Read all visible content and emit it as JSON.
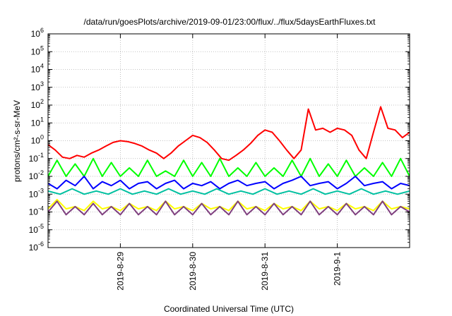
{
  "chart_data": {
    "type": "line",
    "title": "/data/run/goesPlots/archive/2019-09-01/23:00/flux/../flux/5daysEarthFluxes.txt",
    "xlabel": "Coordinated Universal Time (UTC)",
    "ylabel": "protons/cm²-s-sr-MeV",
    "yscale": "log",
    "ylim": [
      1e-06,
      1000000.0
    ],
    "xlim": [
      "2019-08-28 00:00",
      "2019-09-02 00:00"
    ],
    "grid": true,
    "legend": "none",
    "x_tick_labels": [
      "2019-8-29",
      "2019-8-30",
      "2019-8-31",
      "2019-9-1"
    ],
    "x_tick_dates": [
      "2019-08-29",
      "2019-08-30",
      "2019-08-31",
      "2019-09-01"
    ],
    "y_tick_exponents": [
      -6,
      -5,
      -4,
      -3,
      -2,
      -1,
      0,
      1,
      2,
      3,
      4,
      5,
      6
    ],
    "series": [
      {
        "color": "#ff0000",
        "width": 2,
        "x": [
          "2019-08-28 00:00",
          "2019-08-28 02:24",
          "2019-08-28 04:48",
          "2019-08-28 07:12",
          "2019-08-28 09:36",
          "2019-08-28 12:00",
          "2019-08-28 14:24",
          "2019-08-28 16:48",
          "2019-08-28 19:12",
          "2019-08-28 21:36",
          "2019-08-29 00:00",
          "2019-08-29 02:24",
          "2019-08-29 04:48",
          "2019-08-29 07:12",
          "2019-08-29 09:36",
          "2019-08-29 12:00",
          "2019-08-29 14:24",
          "2019-08-29 16:48",
          "2019-08-29 19:12",
          "2019-08-29 21:36",
          "2019-08-30 00:00",
          "2019-08-30 02:24",
          "2019-08-30 04:48",
          "2019-08-30 07:12",
          "2019-08-30 09:36",
          "2019-08-30 12:00",
          "2019-08-30 14:24",
          "2019-08-30 16:48",
          "2019-08-30 19:12",
          "2019-08-30 21:36",
          "2019-08-31 00:00",
          "2019-08-31 02:24",
          "2019-08-31 04:48",
          "2019-08-31 07:12",
          "2019-08-31 09:36",
          "2019-08-31 12:00",
          "2019-08-31 14:24",
          "2019-08-31 16:48",
          "2019-08-31 19:12",
          "2019-08-31 21:36",
          "2019-09-01 00:00",
          "2019-09-01 02:24",
          "2019-09-01 04:48",
          "2019-09-01 07:12",
          "2019-09-01 09:36",
          "2019-09-01 12:00",
          "2019-09-01 14:24",
          "2019-09-01 16:48",
          "2019-09-01 19:12",
          "2019-09-01 21:36",
          "2019-09-02 00:00"
        ],
        "y": [
          0.6,
          0.3,
          0.12,
          0.1,
          0.15,
          0.12,
          0.2,
          0.3,
          0.5,
          0.8,
          1.0,
          0.9,
          0.7,
          0.5,
          0.3,
          0.2,
          0.1,
          0.2,
          0.5,
          1.0,
          2.0,
          1.5,
          0.8,
          0.3,
          0.1,
          0.08,
          0.15,
          0.3,
          0.7,
          2.0,
          4.0,
          3.0,
          1.0,
          0.3,
          0.1,
          0.3,
          60,
          4,
          5,
          3,
          5,
          4,
          2,
          0.3,
          0.1,
          3,
          80,
          5,
          4,
          1.5,
          3
        ]
      },
      {
        "color": "#00ff00",
        "width": 2,
        "x": [
          "2019-08-28 00:00",
          "2019-08-28 03:00",
          "2019-08-28 06:00",
          "2019-08-28 09:00",
          "2019-08-28 12:00",
          "2019-08-28 15:00",
          "2019-08-28 18:00",
          "2019-08-28 21:00",
          "2019-08-29 00:00",
          "2019-08-29 03:00",
          "2019-08-29 06:00",
          "2019-08-29 09:00",
          "2019-08-29 12:00",
          "2019-08-29 15:00",
          "2019-08-29 18:00",
          "2019-08-29 21:00",
          "2019-08-30 00:00",
          "2019-08-30 03:00",
          "2019-08-30 06:00",
          "2019-08-30 09:00",
          "2019-08-30 12:00",
          "2019-08-30 15:00",
          "2019-08-30 18:00",
          "2019-08-30 21:00",
          "2019-08-31 00:00",
          "2019-08-31 03:00",
          "2019-08-31 06:00",
          "2019-08-31 09:00",
          "2019-08-31 12:00",
          "2019-08-31 15:00",
          "2019-08-31 18:00",
          "2019-08-31 21:00",
          "2019-09-01 00:00",
          "2019-09-01 03:00",
          "2019-09-01 06:00",
          "2019-09-01 09:00",
          "2019-09-01 12:00",
          "2019-09-01 15:00",
          "2019-09-01 18:00",
          "2019-09-01 21:00",
          "2019-09-02 00:00"
        ],
        "y": [
          0.01,
          0.08,
          0.01,
          0.05,
          0.01,
          0.1,
          0.01,
          0.06,
          0.01,
          0.03,
          0.01,
          0.08,
          0.01,
          0.02,
          0.01,
          0.08,
          0.01,
          0.06,
          0.01,
          0.1,
          0.01,
          0.03,
          0.01,
          0.06,
          0.01,
          0.03,
          0.01,
          0.08,
          0.01,
          0.1,
          0.01,
          0.05,
          0.01,
          0.08,
          0.01,
          0.03,
          0.01,
          0.06,
          0.01,
          0.1,
          0.01
        ]
      },
      {
        "color": "#0000ff",
        "width": 2,
        "x": [
          "2019-08-28 00:00",
          "2019-08-28 03:00",
          "2019-08-28 06:00",
          "2019-08-28 09:00",
          "2019-08-28 12:00",
          "2019-08-28 15:00",
          "2019-08-28 18:00",
          "2019-08-28 21:00",
          "2019-08-29 00:00",
          "2019-08-29 03:00",
          "2019-08-29 06:00",
          "2019-08-29 09:00",
          "2019-08-29 12:00",
          "2019-08-29 15:00",
          "2019-08-29 18:00",
          "2019-08-29 21:00",
          "2019-08-30 00:00",
          "2019-08-30 03:00",
          "2019-08-30 06:00",
          "2019-08-30 09:00",
          "2019-08-30 12:00",
          "2019-08-30 15:00",
          "2019-08-30 18:00",
          "2019-08-30 21:00",
          "2019-08-31 00:00",
          "2019-08-31 03:00",
          "2019-08-31 06:00",
          "2019-08-31 09:00",
          "2019-08-31 12:00",
          "2019-08-31 15:00",
          "2019-08-31 18:00",
          "2019-08-31 21:00",
          "2019-09-01 00:00",
          "2019-09-01 03:00",
          "2019-09-01 06:00",
          "2019-09-01 09:00",
          "2019-09-01 12:00",
          "2019-09-01 15:00",
          "2019-09-01 18:00",
          "2019-09-01 21:00",
          "2019-09-02 00:00"
        ],
        "y": [
          0.004,
          0.002,
          0.006,
          0.003,
          0.01,
          0.002,
          0.005,
          0.003,
          0.006,
          0.002,
          0.004,
          0.005,
          0.002,
          0.004,
          0.006,
          0.002,
          0.004,
          0.003,
          0.005,
          0.002,
          0.004,
          0.006,
          0.003,
          0.004,
          0.005,
          0.002,
          0.004,
          0.006,
          0.01,
          0.003,
          0.004,
          0.005,
          0.002,
          0.004,
          0.01,
          0.003,
          0.004,
          0.005,
          0.002,
          0.004,
          0.003
        ]
      },
      {
        "color": "#00c0a0",
        "width": 2,
        "x": [
          "2019-08-28 00:00",
          "2019-08-28 04:00",
          "2019-08-28 08:00",
          "2019-08-28 12:00",
          "2019-08-28 16:00",
          "2019-08-28 20:00",
          "2019-08-29 00:00",
          "2019-08-29 04:00",
          "2019-08-29 08:00",
          "2019-08-29 12:00",
          "2019-08-29 16:00",
          "2019-08-29 20:00",
          "2019-08-30 00:00",
          "2019-08-30 04:00",
          "2019-08-30 08:00",
          "2019-08-30 12:00",
          "2019-08-30 16:00",
          "2019-08-30 20:00",
          "2019-08-31 00:00",
          "2019-08-31 04:00",
          "2019-08-31 08:00",
          "2019-08-31 12:00",
          "2019-08-31 16:00",
          "2019-08-31 20:00",
          "2019-09-01 00:00",
          "2019-09-01 04:00",
          "2019-09-01 08:00",
          "2019-09-01 12:00",
          "2019-09-01 16:00",
          "2019-09-01 20:00",
          "2019-09-02 00:00"
        ],
        "y": [
          0.0015,
          0.001,
          0.002,
          0.001,
          0.0015,
          0.001,
          0.002,
          0.001,
          0.0015,
          0.001,
          0.002,
          0.001,
          0.0015,
          0.001,
          0.002,
          0.001,
          0.0015,
          0.001,
          0.002,
          0.001,
          0.0015,
          0.001,
          0.002,
          0.001,
          0.0015,
          0.001,
          0.002,
          0.001,
          0.0015,
          0.001,
          0.0015
        ]
      },
      {
        "color": "#ffff00",
        "width": 2,
        "x": [
          "2019-08-28 00:00",
          "2019-08-28 03:00",
          "2019-08-28 06:00",
          "2019-08-28 09:00",
          "2019-08-28 12:00",
          "2019-08-28 15:00",
          "2019-08-28 18:00",
          "2019-08-28 21:00",
          "2019-08-29 00:00",
          "2019-08-29 03:00",
          "2019-08-29 06:00",
          "2019-08-29 09:00",
          "2019-08-29 12:00",
          "2019-08-29 15:00",
          "2019-08-29 18:00",
          "2019-08-29 21:00",
          "2019-08-30 00:00",
          "2019-08-30 03:00",
          "2019-08-30 06:00",
          "2019-08-30 09:00",
          "2019-08-30 12:00",
          "2019-08-30 15:00",
          "2019-08-30 18:00",
          "2019-08-30 21:00",
          "2019-08-31 00:00",
          "2019-08-31 03:00",
          "2019-08-31 06:00",
          "2019-08-31 09:00",
          "2019-08-31 12:00",
          "2019-08-31 15:00",
          "2019-08-31 18:00",
          "2019-08-31 21:00",
          "2019-09-01 00:00",
          "2019-09-01 03:00",
          "2019-09-01 06:00",
          "2019-09-01 09:00",
          "2019-09-01 12:00",
          "2019-09-01 15:00",
          "2019-09-01 18:00",
          "2019-09-01 21:00",
          "2019-09-02 00:00"
        ],
        "y": [
          0.00015,
          0.0005,
          0.00015,
          0.0002,
          0.00012,
          0.0004,
          0.00015,
          0.0002,
          0.00012,
          0.0003,
          0.00015,
          0.0002,
          0.00012,
          0.0004,
          0.00015,
          0.0002,
          0.00012,
          0.0003,
          0.00015,
          0.0002,
          0.00012,
          0.0004,
          0.00015,
          0.0002,
          0.00012,
          0.0003,
          0.00015,
          0.0002,
          0.00012,
          0.0004,
          0.00015,
          0.0002,
          0.00012,
          0.0003,
          0.00015,
          0.0002,
          0.00012,
          0.0004,
          0.00015,
          0.0002,
          0.00015
        ]
      },
      {
        "color": "#7f3f7f",
        "width": 2,
        "x": [
          "2019-08-28 00:00",
          "2019-08-28 03:00",
          "2019-08-28 06:00",
          "2019-08-28 09:00",
          "2019-08-28 12:00",
          "2019-08-28 15:00",
          "2019-08-28 18:00",
          "2019-08-28 21:00",
          "2019-08-29 00:00",
          "2019-08-29 03:00",
          "2019-08-29 06:00",
          "2019-08-29 09:00",
          "2019-08-29 12:00",
          "2019-08-29 15:00",
          "2019-08-29 18:00",
          "2019-08-29 21:00",
          "2019-08-30 00:00",
          "2019-08-30 03:00",
          "2019-08-30 06:00",
          "2019-08-30 09:00",
          "2019-08-30 12:00",
          "2019-08-30 15:00",
          "2019-08-30 18:00",
          "2019-08-30 21:00",
          "2019-08-31 00:00",
          "2019-08-31 03:00",
          "2019-08-31 06:00",
          "2019-08-31 09:00",
          "2019-08-31 12:00",
          "2019-08-31 15:00",
          "2019-08-31 18:00",
          "2019-08-31 21:00",
          "2019-09-01 00:00",
          "2019-09-01 03:00",
          "2019-09-01 06:00",
          "2019-09-01 09:00",
          "2019-09-01 12:00",
          "2019-09-01 15:00",
          "2019-09-01 18:00",
          "2019-09-01 21:00",
          "2019-09-02 00:00"
        ],
        "y": [
          0.0001,
          0.0004,
          7e-05,
          0.0002,
          7e-05,
          0.0003,
          7e-05,
          0.0002,
          7e-05,
          0.0003,
          7e-05,
          0.0002,
          7e-05,
          0.0004,
          7e-05,
          0.0002,
          7e-05,
          0.0003,
          7e-05,
          0.0002,
          7e-05,
          0.0004,
          7e-05,
          0.0002,
          7e-05,
          0.0003,
          7e-05,
          0.0002,
          7e-05,
          0.0004,
          7e-05,
          0.0002,
          7e-05,
          0.0003,
          7e-05,
          0.0002,
          7e-05,
          0.0004,
          7e-05,
          0.0002,
          0.0001
        ]
      }
    ]
  }
}
